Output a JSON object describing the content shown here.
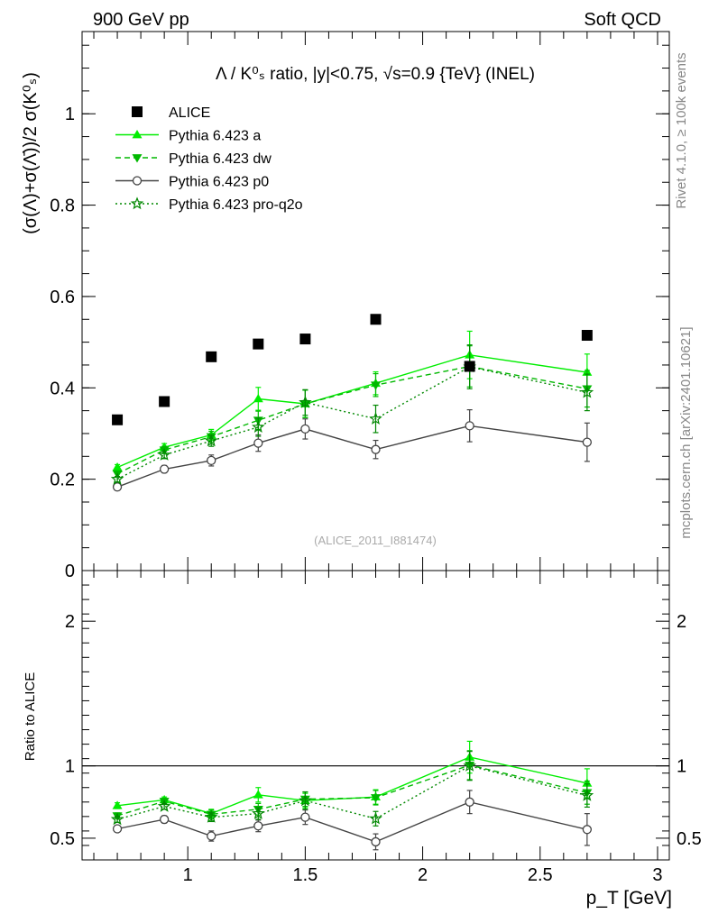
{
  "header": {
    "left": "900 GeV pp",
    "right": "Soft QCD"
  },
  "side_labels": {
    "rivet": "Rivet 4.1.0, ≥ 100k events",
    "mcplots": "mcplots.cern.ch [arXiv:2401.10621]"
  },
  "chart_data": [
    {
      "type": "line",
      "panel": "main",
      "title": "Λ / K⁰ₛ ratio, |y|<0.75, √s=0.9 {TeV} (INEL)",
      "ylabel": "(σ(Λ)+σ(Λ̄))/2 σ(K⁰ₛ)",
      "xlabel": "",
      "watermark": "(ALICE_2011_I881474)",
      "xlim": [
        0.55,
        3.05
      ],
      "ylim": [
        0,
        1.18
      ],
      "yticks": [
        0,
        0.2,
        0.4,
        0.6,
        0.8,
        1
      ],
      "ytick_labels": [
        "0",
        "0.2",
        "0.4",
        "0.6",
        "0.8",
        "1"
      ],
      "legend_position": "top-left",
      "x": [
        0.7,
        0.9,
        1.1,
        1.3,
        1.5,
        1.8,
        2.2,
        2.7
      ],
      "series": [
        {
          "name": "ALICE",
          "style": "data",
          "color": "#000000",
          "marker": "square",
          "values": [
            0.33,
            0.37,
            0.468,
            0.496,
            0.507,
            0.55,
            0.447,
            0.515
          ],
          "errors": [
            0,
            0,
            0,
            0,
            0,
            0,
            0,
            0
          ]
        },
        {
          "name": "Pythia 6.423 a",
          "style": "solid",
          "color": "#00ee00",
          "marker": "triangle-up",
          "values": [
            0.226,
            0.27,
            0.297,
            0.376,
            0.365,
            0.41,
            0.472,
            0.434
          ],
          "errors": [
            0.006,
            0.008,
            0.012,
            0.025,
            0.03,
            0.025,
            0.052,
            0.04
          ]
        },
        {
          "name": "Pythia 6.423 dw",
          "style": "dashed",
          "color": "#00b800",
          "marker": "triangle-down",
          "values": [
            0.212,
            0.264,
            0.293,
            0.329,
            0.365,
            0.406,
            0.447,
            0.398
          ],
          "errors": [
            0.006,
            0.008,
            0.012,
            0.02,
            0.03,
            0.025,
            0.045,
            0.04
          ]
        },
        {
          "name": "Pythia 6.423 p0",
          "style": "solid",
          "color": "#444444",
          "marker": "circle-open",
          "values": [
            0.183,
            0.222,
            0.241,
            0.279,
            0.31,
            0.265,
            0.317,
            0.281
          ],
          "errors": [
            0.006,
            0.008,
            0.012,
            0.018,
            0.022,
            0.02,
            0.035,
            0.042
          ]
        },
        {
          "name": "Pythia 6.423 pro-q2o",
          "style": "dotted",
          "color": "#008800",
          "marker": "star-open",
          "values": [
            0.2,
            0.253,
            0.284,
            0.314,
            0.368,
            0.332,
            0.446,
            0.39
          ],
          "errors": [
            0.006,
            0.008,
            0.012,
            0.02,
            0.028,
            0.03,
            0.048,
            0.04
          ]
        }
      ]
    },
    {
      "type": "line",
      "panel": "ratio",
      "ylabel": "Ratio to ALICE",
      "xlabel": "p_T [GeV]",
      "xlim": [
        0.55,
        3.05
      ],
      "ylim": [
        0.35,
        2.35
      ],
      "yticks": [
        0.5,
        1,
        2
      ],
      "ytick_labels": [
        "0.5",
        "1",
        "2"
      ],
      "xticks": [
        1,
        1.5,
        2,
        2.5,
        3
      ],
      "xtick_labels": [
        "1",
        "1.5",
        "2",
        "2.5",
        "3"
      ],
      "reference_line": 1,
      "x": [
        0.7,
        0.9,
        1.1,
        1.3,
        1.5,
        1.8,
        2.2,
        2.7
      ],
      "series": [
        {
          "name": "Pythia 6.423 a",
          "style": "solid",
          "color": "#00ee00",
          "marker": "triangle-up",
          "values": [
            0.725,
            0.765,
            0.67,
            0.8,
            0.76,
            0.785,
            1.06,
            0.88
          ],
          "errors": [
            0.02,
            0.02,
            0.03,
            0.05,
            0.05,
            0.05,
            0.11,
            0.1
          ]
        },
        {
          "name": "Pythia 6.423 dw",
          "style": "dashed",
          "color": "#00b800",
          "marker": "triangle-down",
          "values": [
            0.655,
            0.755,
            0.665,
            0.7,
            0.77,
            0.78,
            1.005,
            0.815
          ],
          "errors": [
            0.02,
            0.02,
            0.03,
            0.04,
            0.05,
            0.05,
            0.1,
            0.08
          ]
        },
        {
          "name": "Pythia 6.423 p0",
          "style": "solid",
          "color": "#444444",
          "marker": "circle-open",
          "values": [
            0.565,
            0.63,
            0.515,
            0.585,
            0.645,
            0.475,
            0.75,
            0.56
          ],
          "errors": [
            0.02,
            0.025,
            0.035,
            0.04,
            0.05,
            0.055,
            0.08,
            0.11
          ]
        },
        {
          "name": "Pythia 6.423 pro-q2o",
          "style": "dotted",
          "color": "#008800",
          "marker": "star-open",
          "values": [
            0.63,
            0.72,
            0.645,
            0.67,
            0.76,
            0.635,
            1.0,
            0.795
          ],
          "errors": [
            0.02,
            0.02,
            0.03,
            0.04,
            0.06,
            0.05,
            0.1,
            0.08
          ]
        }
      ]
    }
  ]
}
